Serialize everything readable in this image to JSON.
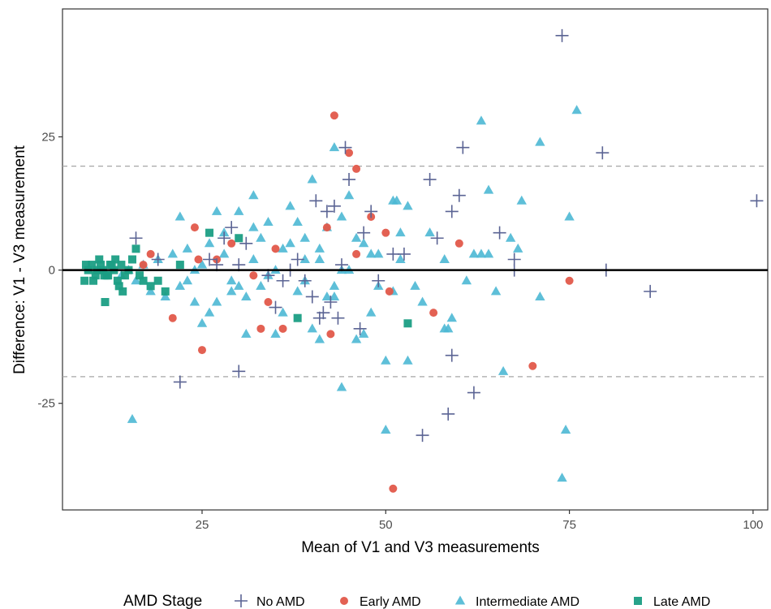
{
  "chart_data": {
    "type": "scatter",
    "title": "",
    "xlabel": "Mean of V1 and V3 measurements",
    "ylabel": "Difference: V1 - V3 measurement",
    "xlim": [
      6,
      102
    ],
    "ylim": [
      -45,
      49
    ],
    "xticks": [
      25,
      50,
      75,
      100
    ],
    "xtick_labels": [
      "25",
      "50",
      "75",
      "100"
    ],
    "yticks": [
      -25,
      0,
      25
    ],
    "ytick_labels": [
      "-25",
      "0",
      "25"
    ],
    "grid": false,
    "reference_lines": {
      "mean": 0,
      "upper_loa": 19.5,
      "lower_loa": -20
    },
    "legend": {
      "title": "AMD Stage",
      "placement": "bottom",
      "entries": [
        "No AMD",
        "Early AMD",
        "Intermediate AMD",
        "Late AMD"
      ]
    },
    "colors": {
      "No AMD": "#5b6494",
      "Early AMD": "#e2594a",
      "Intermediate AMD": "#4db8d4",
      "Late AMD": "#1b9e84"
    },
    "series": [
      {
        "name": "No AMD",
        "marker": "plus",
        "x": [
          16,
          19,
          22,
          26,
          27,
          28,
          29,
          30,
          30,
          31,
          34,
          35,
          36,
          37,
          38,
          39,
          40,
          40.5,
          41,
          41.5,
          42,
          42.5,
          43,
          43.5,
          44,
          44.5,
          45,
          46.5,
          47,
          48,
          49,
          51,
          52.5,
          55,
          56,
          57,
          58.5,
          59,
          59,
          60,
          60.5,
          62,
          65.5,
          67.5,
          67.5,
          74,
          79.5,
          80,
          86,
          100.5
        ],
        "y": [
          6,
          2,
          -21,
          2,
          1,
          6,
          8,
          -19,
          1,
          5,
          -1,
          -7,
          -2,
          0,
          2,
          -2,
          -5,
          13,
          -9,
          -8,
          11,
          -6,
          12,
          -9,
          1,
          23,
          17,
          -11,
          7,
          11,
          -2,
          3,
          3,
          -31,
          17,
          6,
          -27,
          11,
          -16,
          14,
          23,
          -23,
          7,
          2,
          0,
          44,
          22,
          0,
          -4,
          13
        ]
      },
      {
        "name": "Early AMD",
        "marker": "circle",
        "x": [
          17,
          18,
          21,
          24,
          24.5,
          25,
          27,
          29,
          32,
          33,
          34,
          35,
          36,
          42,
          42.5,
          43,
          45,
          46,
          46,
          48,
          50,
          50.5,
          51,
          56.5,
          60,
          70,
          75
        ],
        "y": [
          1,
          3,
          -9,
          8,
          2,
          -15,
          2,
          5,
          -1,
          -11,
          -6,
          4,
          -11,
          8,
          -12,
          29,
          22,
          19,
          3,
          10,
          7,
          -4,
          -41,
          -8,
          5,
          -18,
          -2
        ]
      },
      {
        "name": "Intermediate AMD",
        "marker": "triangle",
        "x": [
          14,
          15,
          16,
          17,
          18,
          19,
          20,
          21,
          22,
          23,
          24,
          25,
          26,
          27,
          28,
          29,
          30,
          31,
          32,
          33,
          34,
          35,
          36,
          37,
          38,
          39,
          40,
          41,
          42,
          43,
          44,
          45,
          46,
          47,
          48,
          49,
          50,
          51,
          52,
          53,
          54,
          56,
          58,
          59,
          62,
          63,
          64,
          66,
          68,
          71,
          74,
          75,
          76,
          15.5,
          22,
          24,
          27,
          32,
          35,
          38,
          41,
          44,
          47,
          50,
          53,
          58.5,
          64,
          68.5,
          71,
          74.5,
          43,
          44,
          51.5,
          40,
          26,
          29,
          31,
          33,
          36,
          39,
          42,
          45,
          48,
          51,
          23,
          25,
          28,
          30,
          32,
          34,
          37,
          39,
          41,
          43,
          46,
          49,
          52,
          55,
          58,
          61,
          63,
          65,
          67
        ],
        "y": [
          -1,
          0,
          -2,
          1,
          -4,
          2,
          -5,
          3,
          -3,
          4,
          0,
          -10,
          5,
          -6,
          7,
          -2,
          11,
          -5,
          8,
          -3,
          9,
          0,
          -8,
          12,
          -4,
          6,
          17,
          2,
          8,
          -3,
          -22,
          14,
          -13,
          5,
          -8,
          3,
          -17,
          13,
          2,
          -17,
          -3,
          7,
          -11,
          -9,
          3,
          28,
          3,
          -19,
          4,
          24,
          -39,
          10,
          30,
          -28,
          10,
          -6,
          11,
          14,
          -12,
          9,
          -13,
          10,
          -12,
          -30,
          12,
          -11,
          15,
          13,
          -5,
          -30,
          23,
          0,
          13,
          -11,
          -8,
          -4,
          -12,
          6,
          4,
          2,
          -5,
          0,
          3,
          -4,
          -2,
          1,
          3,
          -3,
          2,
          -1,
          5,
          -2,
          4,
          -5,
          6,
          -3,
          7,
          -6,
          2,
          -2,
          3,
          -4,
          6
        ]
      },
      {
        "name": "Late AMD",
        "marker": "square",
        "x": [
          9,
          9.5,
          10,
          10.5,
          11,
          11.5,
          12,
          12.5,
          13,
          13.5,
          14,
          14.5,
          15,
          15.5,
          16,
          16.5,
          17,
          18,
          19,
          20,
          22,
          26,
          30,
          38,
          53,
          9.2,
          10.2,
          11.2,
          12.2,
          13.2,
          14.2,
          10.7,
          11.7,
          12.7,
          13.7,
          11.8
        ],
        "y": [
          -2,
          0,
          1,
          -1,
          2,
          0,
          -1,
          1,
          0,
          -2,
          1,
          -1,
          0,
          2,
          4,
          -1,
          -2,
          -3,
          -2,
          -4,
          1,
          7,
          6,
          -9,
          -10,
          1,
          -2,
          1,
          -1,
          2,
          -4,
          0,
          -1,
          1,
          -3,
          -6
        ]
      }
    ]
  }
}
